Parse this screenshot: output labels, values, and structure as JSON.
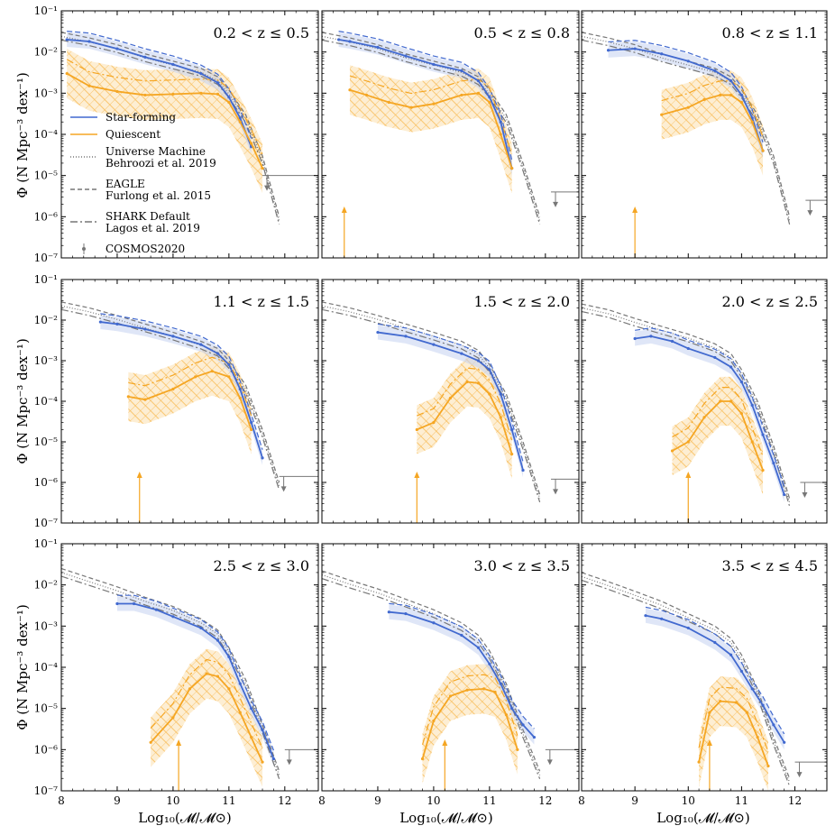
{
  "figure": {
    "ylabel": "Φ (N Mpc⁻³ dex⁻¹)",
    "xlabel": "Log₁₀(𝓜/𝓜⊙)"
  },
  "legend": [
    {
      "key": "sf",
      "text": [
        "Star-forming"
      ],
      "style": "solid",
      "color": "#4169cf"
    },
    {
      "key": "q",
      "text": [
        "Quiescent"
      ],
      "style": "solid",
      "color": "#f5a623"
    },
    {
      "key": "um",
      "text": [
        "Universe Machine",
        "Behroozi et al. 2019"
      ],
      "style": "dotted",
      "color": "#777777"
    },
    {
      "key": "eagle",
      "text": [
        "EAGLE",
        "Furlong et al. 2015"
      ],
      "style": "dashed",
      "color": "#777777"
    },
    {
      "key": "shark",
      "text": [
        "SHARK Default",
        "Lagos et al. 2019"
      ],
      "style": "dashdot",
      "color": "#777777"
    },
    {
      "key": "cosmos",
      "text": [
        "COSMOS2020"
      ],
      "style": "errorbar",
      "color": "#777777"
    }
  ],
  "colors": {
    "star_forming": "#4169cf",
    "quiescent": "#f5a623",
    "quiescent_fill": "#fbe3b5",
    "star_forming_fill": "#c9d6f2",
    "models": "#777777"
  },
  "chart_data": {
    "type": "line",
    "yscale": "log",
    "xlim": [
      8,
      12.6
    ],
    "ylim": [
      1e-07,
      0.1
    ],
    "xticks": [
      "8",
      "9",
      "10",
      "11",
      "12"
    ],
    "yticks": [
      "10⁻⁷",
      "10⁻⁶",
      "10⁻⁵",
      "10⁻⁴",
      "10⁻³",
      "10⁻²",
      "10⁻¹"
    ],
    "panels": [
      {
        "label": "0.2 < z ≤ 0.5",
        "star_forming": {
          "x": [
            8.1,
            8.5,
            9.0,
            9.5,
            10.0,
            10.5,
            10.8,
            11.0,
            11.2,
            11.4
          ],
          "y": [
            0.02,
            0.018,
            0.012,
            0.0075,
            0.005,
            0.003,
            0.0018,
            0.0008,
            0.00025,
            5e-05
          ]
        },
        "quiescent": {
          "x": [
            8.1,
            8.5,
            9.0,
            9.5,
            10.0,
            10.5,
            10.8,
            11.0,
            11.2,
            11.4,
            11.6
          ],
          "y": [
            0.003,
            0.0015,
            0.0011,
            0.0009,
            0.00095,
            0.001,
            0.00095,
            0.0006,
            0.0002,
            6e-05,
            1.5e-05
          ]
        },
        "model_total": {
          "x": [
            8.0,
            8.5,
            9.0,
            9.5,
            10.0,
            10.5,
            10.8,
            11.0,
            11.3,
            11.6,
            11.9
          ],
          "y": [
            0.03,
            0.022,
            0.015,
            0.009,
            0.006,
            0.004,
            0.0025,
            0.0012,
            0.0003,
            3e-05,
            1e-06
          ]
        },
        "cosmos_limit": {
          "x_start": 11.6,
          "x_end": 12.6,
          "y": 1e-05
        },
        "q_arrow_x": null
      },
      {
        "label": "0.5 < z ≤ 0.8",
        "star_forming": {
          "x": [
            8.3,
            8.5,
            9.0,
            9.5,
            10.0,
            10.5,
            10.8,
            11.0,
            11.2,
            11.4
          ],
          "y": [
            0.02,
            0.018,
            0.013,
            0.008,
            0.005,
            0.0035,
            0.002,
            0.0008,
            0.0002,
            1.5e-05
          ]
        },
        "quiescent": {
          "x": [
            8.5,
            8.8,
            9.2,
            9.6,
            10.0,
            10.5,
            10.8,
            11.0,
            11.2,
            11.4
          ],
          "y": [
            0.0012,
            0.0009,
            0.0006,
            0.00045,
            0.00055,
            0.0009,
            0.001,
            0.0006,
            0.0001,
            1.5e-05
          ]
        },
        "model_total": {
          "x": [
            8.0,
            8.5,
            9.0,
            9.5,
            10.0,
            10.5,
            10.8,
            11.0,
            11.3,
            11.6,
            11.9
          ],
          "y": [
            0.03,
            0.022,
            0.015,
            0.009,
            0.006,
            0.004,
            0.0025,
            0.0012,
            0.0003,
            2e-05,
            1e-06
          ]
        },
        "cosmos_limit": {
          "x_start": 12.1,
          "x_end": 12.6,
          "y": 4e-06
        },
        "q_arrow_x": 8.4
      },
      {
        "label": "0.8 < z ≤ 1.1",
        "star_forming": {
          "x": [
            8.5,
            9.0,
            9.5,
            10.0,
            10.5,
            10.8,
            11.0,
            11.2,
            11.4
          ],
          "y": [
            0.011,
            0.012,
            0.009,
            0.006,
            0.0035,
            0.002,
            0.0009,
            0.00025,
            4e-05
          ]
        },
        "quiescent": {
          "x": [
            9.5,
            10.0,
            10.3,
            10.6,
            10.8,
            11.0,
            11.2,
            11.4
          ],
          "y": [
            0.0003,
            0.00045,
            0.0007,
            0.0009,
            0.0009,
            0.0006,
            0.0002,
            4e-05
          ]
        },
        "model_total": {
          "x": [
            8.0,
            8.5,
            9.0,
            9.5,
            10.0,
            10.5,
            10.8,
            11.0,
            11.3,
            11.6,
            11.9
          ],
          "y": [
            0.03,
            0.022,
            0.015,
            0.009,
            0.006,
            0.004,
            0.0025,
            0.0012,
            0.0003,
            3e-05,
            1e-06
          ]
        },
        "cosmos_limit": {
          "x_start": 12.2,
          "x_end": 12.4,
          "y": 2.5e-06
        },
        "q_arrow_x": 9.0
      },
      {
        "label": "1.1 < z ≤ 1.5",
        "star_forming": {
          "x": [
            8.7,
            9.0,
            9.5,
            10.0,
            10.5,
            10.8,
            11.0,
            11.2,
            11.4,
            11.6
          ],
          "y": [
            0.009,
            0.008,
            0.006,
            0.004,
            0.0025,
            0.0015,
            0.0008,
            0.0002,
            3e-05,
            4e-06
          ]
        },
        "quiescent": {
          "x": [
            9.2,
            9.5,
            10.0,
            10.4,
            10.7,
            11.0,
            11.2,
            11.4
          ],
          "y": [
            0.00013,
            0.00011,
            0.0002,
            0.0004,
            0.00055,
            0.0004,
            0.00012,
            2e-05
          ]
        },
        "model_total": {
          "x": [
            8.0,
            8.5,
            9.0,
            9.5,
            10.0,
            10.5,
            10.8,
            11.0,
            11.3,
            11.6,
            11.9
          ],
          "y": [
            0.028,
            0.02,
            0.013,
            0.008,
            0.005,
            0.003,
            0.002,
            0.001,
            0.00025,
            2e-05,
            1e-06
          ]
        },
        "cosmos_limit": {
          "x_start": 11.9,
          "x_end": 12.5,
          "y": 1.4e-06
        },
        "q_arrow_x": 9.4
      },
      {
        "label": "1.5 < z ≤ 2.0",
        "star_forming": {
          "x": [
            9.0,
            9.5,
            10.0,
            10.5,
            10.8,
            11.0,
            11.2,
            11.4,
            11.6
          ],
          "y": [
            0.005,
            0.004,
            0.0025,
            0.0015,
            0.001,
            0.0006,
            0.00015,
            2e-05,
            2e-06
          ]
        },
        "quiescent": {
          "x": [
            9.7,
            10.0,
            10.3,
            10.6,
            10.8,
            11.0,
            11.2,
            11.4
          ],
          "y": [
            2e-05,
            3e-05,
            0.00012,
            0.0003,
            0.00028,
            0.00015,
            4e-05,
            5e-06
          ]
        },
        "model_total": {
          "x": [
            8.0,
            8.5,
            9.0,
            9.5,
            10.0,
            10.5,
            10.8,
            11.0,
            11.3,
            11.6,
            11.9
          ],
          "y": [
            0.028,
            0.02,
            0.013,
            0.008,
            0.005,
            0.003,
            0.0018,
            0.0008,
            0.00015,
            1e-05,
            5e-07
          ]
        },
        "cosmos_limit": {
          "x_start": 12.1,
          "x_end": 12.6,
          "y": 1.2e-06
        },
        "q_arrow_x": 9.7
      },
      {
        "label": "2.0 < z ≤ 2.5",
        "star_forming": {
          "x": [
            9.0,
            9.3,
            9.7,
            10.0,
            10.5,
            10.8,
            11.0,
            11.2,
            11.4,
            11.6,
            11.8
          ],
          "y": [
            0.0035,
            0.004,
            0.003,
            0.002,
            0.0012,
            0.0007,
            0.0003,
            8e-05,
            1.5e-05,
            3e-06,
            5e-07
          ]
        },
        "quiescent": {
          "x": [
            9.7,
            10.0,
            10.3,
            10.6,
            10.8,
            11.0,
            11.2,
            11.4
          ],
          "y": [
            6e-06,
            1e-05,
            4e-05,
            0.0001,
            0.0001,
            5e-05,
            1e-05,
            2e-06
          ]
        },
        "model_total": {
          "x": [
            8.0,
            8.5,
            9.0,
            9.5,
            10.0,
            10.5,
            10.8,
            11.0,
            11.3,
            11.6,
            11.9
          ],
          "y": [
            0.025,
            0.018,
            0.011,
            0.007,
            0.0045,
            0.0026,
            0.0015,
            0.0006,
            0.0001,
            8e-06,
            4e-07
          ]
        },
        "cosmos_limit": {
          "x_start": 12.1,
          "x_end": 12.6,
          "y": 1e-06
        },
        "q_arrow_x": 10.0
      },
      {
        "label": "2.5 < z ≤ 3.0",
        "star_forming": {
          "x": [
            9.0,
            9.3,
            9.7,
            10.0,
            10.5,
            10.8,
            11.0,
            11.2,
            11.4,
            11.6,
            11.8
          ],
          "y": [
            0.0035,
            0.0035,
            0.0025,
            0.0017,
            0.0009,
            0.00045,
            0.00018,
            4e-05,
            1e-05,
            3e-06,
            6e-07
          ]
        },
        "quiescent": {
          "x": [
            9.6,
            10.0,
            10.3,
            10.6,
            10.8,
            11.0,
            11.2,
            11.4,
            11.6
          ],
          "y": [
            1.5e-06,
            6e-06,
            3e-05,
            7e-05,
            6e-05,
            3e-05,
            8e-06,
            2e-06,
            5e-07
          ]
        },
        "model_total": {
          "x": [
            8.0,
            8.5,
            9.0,
            9.5,
            10.0,
            10.5,
            10.8,
            11.0,
            11.3,
            11.6,
            11.9
          ],
          "y": [
            0.025,
            0.015,
            0.009,
            0.005,
            0.003,
            0.0015,
            0.0008,
            0.0003,
            5e-05,
            4e-06,
            3e-07
          ]
        },
        "cosmos_limit": {
          "x_start": 12.0,
          "x_end": 12.6,
          "y": 1e-06
        },
        "q_arrow_x": 10.1
      },
      {
        "label": "3.0 < z ≤ 3.5",
        "star_forming": {
          "x": [
            9.2,
            9.5,
            10.0,
            10.5,
            10.8,
            11.0,
            11.2,
            11.4,
            11.6,
            11.8
          ],
          "y": [
            0.0022,
            0.002,
            0.0012,
            0.0006,
            0.0003,
            0.00012,
            4e-05,
            1e-05,
            4e-06,
            2e-06
          ]
        },
        "quiescent": {
          "x": [
            9.8,
            10.0,
            10.3,
            10.6,
            10.9,
            11.1,
            11.3,
            11.5
          ],
          "y": [
            6e-07,
            5e-06,
            2e-05,
            2.8e-05,
            3e-05,
            2.5e-05,
            7e-06,
            1e-06
          ]
        },
        "model_total": {
          "x": [
            8.0,
            8.5,
            9.0,
            9.5,
            10.0,
            10.5,
            10.8,
            11.0,
            11.3,
            11.6,
            11.9
          ],
          "y": [
            0.022,
            0.013,
            0.008,
            0.0045,
            0.0025,
            0.0012,
            0.0006,
            0.00025,
            4e-05,
            3e-06,
            3e-07
          ]
        },
        "cosmos_limit": {
          "x_start": 12.0,
          "x_end": 12.6,
          "y": 1e-06
        },
        "q_arrow_x": 10.2
      },
      {
        "label": "3.5 < z ≤ 4.5",
        "star_forming": {
          "x": [
            9.2,
            9.5,
            10.0,
            10.5,
            10.8,
            11.0,
            11.2,
            11.4,
            11.6,
            11.8
          ],
          "y": [
            0.0018,
            0.0015,
            0.0009,
            0.0004,
            0.0002,
            8e-05,
            3e-05,
            1.2e-05,
            4e-06,
            1.5e-06
          ]
        },
        "quiescent": {
          "x": [
            10.2,
            10.4,
            10.6,
            10.9,
            11.1,
            11.3,
            11.5
          ],
          "y": [
            5e-07,
            8e-06,
            1.5e-05,
            1.4e-05,
            8e-06,
            2e-06,
            4e-07
          ]
        },
        "model_total": {
          "x": [
            8.0,
            8.5,
            9.0,
            9.5,
            10.0,
            10.5,
            10.8,
            11.0,
            11.3,
            11.6,
            11.9
          ],
          "y": [
            0.02,
            0.012,
            0.007,
            0.004,
            0.002,
            0.001,
            0.0005,
            0.0002,
            3e-05,
            2e-06,
            2e-07
          ]
        },
        "cosmos_limit": {
          "x_start": 12.0,
          "x_end": 12.6,
          "y": 5e-07
        },
        "q_arrow_x": 10.4
      }
    ]
  }
}
